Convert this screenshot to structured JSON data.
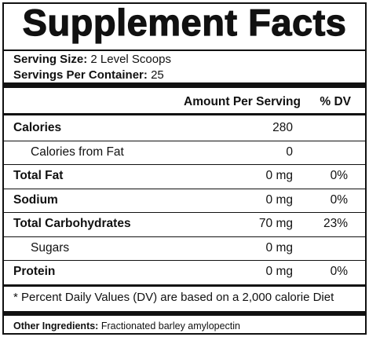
{
  "header": {
    "title": "Supplement Facts"
  },
  "serving": [
    {
      "label": "Serving Size:",
      "value": "2 Level Scoops"
    },
    {
      "label": "Servings Per Container:",
      "value": "25"
    }
  ],
  "table": {
    "columns": [
      "Amount Per Serving",
      "% DV"
    ],
    "rows": [
      {
        "label": "Calories",
        "amount": "280"
      },
      {
        "label": "Calories from Fat",
        "amount": "0",
        "indent": true
      },
      {
        "label": "Total Fat",
        "amount": "0 mg",
        "dv": "0%"
      },
      {
        "label": "Sodium",
        "amount": "0 mg",
        "dv": "0%"
      },
      {
        "label": "Total Carbohydrates",
        "amount": "70 mg",
        "dv": "23%"
      },
      {
        "label": "Sugars",
        "amount": "0 mg",
        "indent": true
      },
      {
        "label": "Protein",
        "amount": "0 mg",
        "dv": "0%"
      }
    ]
  },
  "footnote": "* Percent Daily Values (DV) are based on a 2,000 calorie Diet",
  "ingredients": {
    "label": "Other Ingredients:",
    "value": "Fractionated barley amylopectin"
  }
}
